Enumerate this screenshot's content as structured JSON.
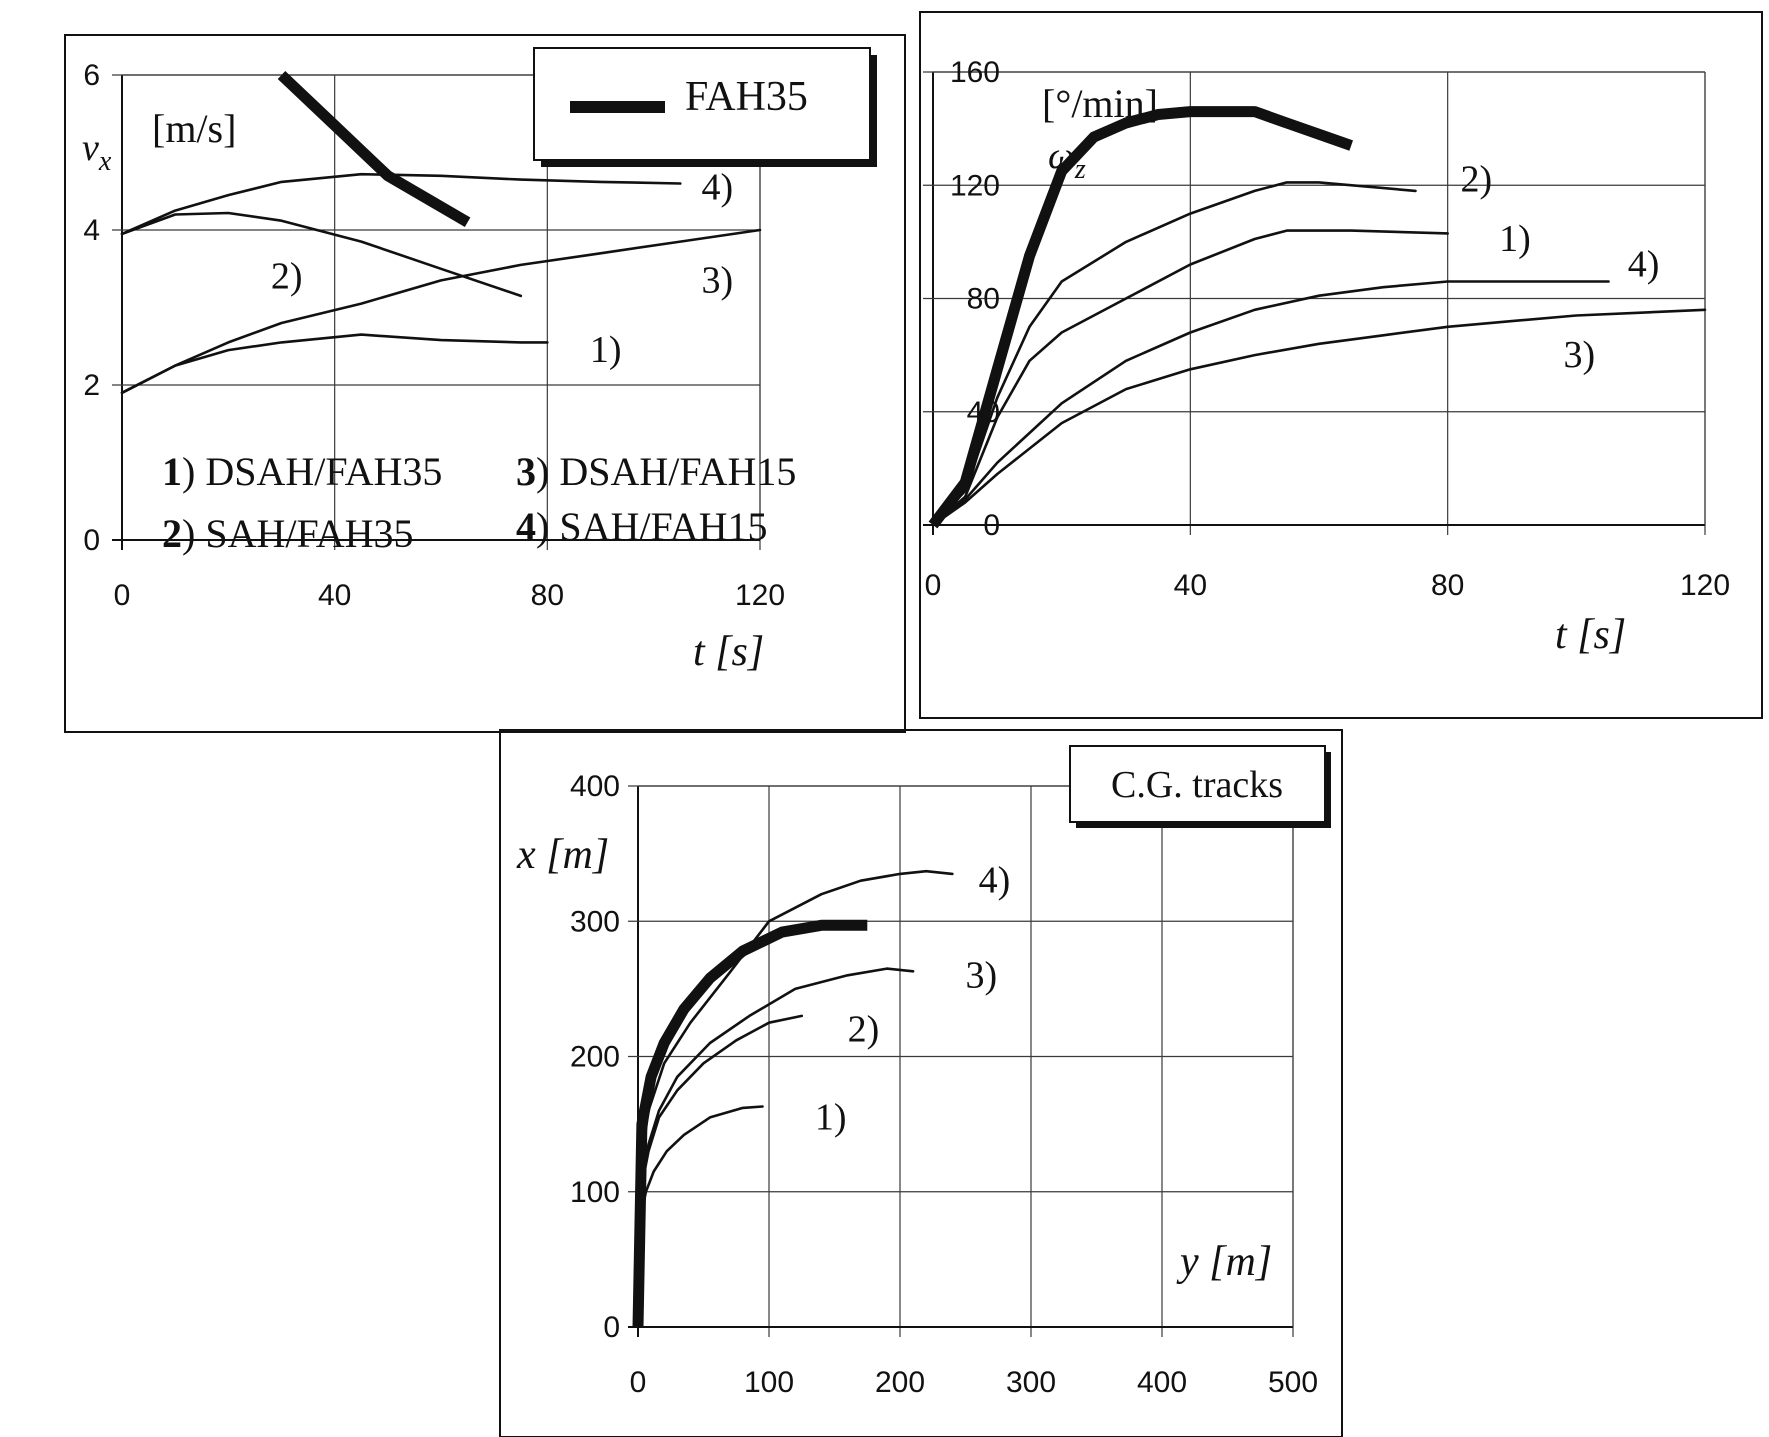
{
  "chart_data": [
    {
      "type": "line",
      "xlabel": "t [s]",
      "ylabel_symbol": "v",
      "ylabel_sub": "x",
      "yunit": "[m/s]",
      "xlim": [
        0,
        120
      ],
      "ylim": [
        0,
        6
      ],
      "xticks": [
        "0",
        "40",
        "80",
        "120"
      ],
      "yticks": [
        "0",
        "2",
        "4",
        "6"
      ],
      "legend": {
        "label": "FAH35",
        "entries": [
          {
            "num": "1",
            "text": ") DSAH/FAH35"
          },
          {
            "num": "2",
            "text": ") SAH/FAH35"
          },
          {
            "num": "3",
            "text": ") DSAH/FAH15"
          },
          {
            "num": "4",
            "text": ") SAH/FAH15"
          }
        ]
      },
      "series": [
        {
          "name": "FAH35",
          "thick": true,
          "x": [
            30,
            40,
            50,
            60,
            65
          ],
          "y": [
            6.1,
            5.35,
            4.7,
            4.3,
            4.1
          ]
        },
        {
          "name": "1)",
          "thick": false,
          "x": [
            0,
            10,
            20,
            30,
            45,
            60,
            75,
            80
          ],
          "y": [
            1.9,
            2.25,
            2.45,
            2.55,
            2.65,
            2.58,
            2.55,
            2.55
          ]
        },
        {
          "name": "2)",
          "thick": false,
          "x": [
            0,
            10,
            20,
            30,
            45,
            60,
            75
          ],
          "y": [
            3.95,
            4.2,
            4.22,
            4.12,
            3.85,
            3.5,
            3.15
          ]
        },
        {
          "name": "3)",
          "thick": false,
          "x": [
            0,
            10,
            20,
            30,
            45,
            60,
            75,
            90,
            105,
            120
          ],
          "y": [
            1.9,
            2.25,
            2.55,
            2.8,
            3.05,
            3.35,
            3.55,
            3.7,
            3.85,
            4.0
          ]
        },
        {
          "name": "4)",
          "thick": false,
          "x": [
            0,
            10,
            20,
            30,
            45,
            60,
            75,
            90,
            105
          ],
          "y": [
            3.95,
            4.25,
            4.45,
            4.62,
            4.72,
            4.7,
            4.65,
            4.62,
            4.6
          ]
        }
      ],
      "labels": [
        {
          "text": "1)",
          "x": 88,
          "y": 2.45
        },
        {
          "text": "2)",
          "x": 28,
          "y": 3.4
        },
        {
          "text": "3)",
          "x": 109,
          "y": 3.35
        },
        {
          "text": "4)",
          "x": 109,
          "y": 4.55
        }
      ]
    },
    {
      "type": "line",
      "xlabel": "t [s]",
      "ylabel_symbol": "ω",
      "ylabel_sub": "z",
      "yunit": "[°/min]",
      "xlim": [
        0,
        120
      ],
      "ylim": [
        0,
        160
      ],
      "xticks": [
        "0",
        "40",
        "80",
        "120"
      ],
      "yticks": [
        "0",
        "40",
        "80",
        "120",
        "160"
      ],
      "series": [
        {
          "name": "FAH35",
          "thick": true,
          "x": [
            0,
            5,
            10,
            15,
            20,
            25,
            30,
            35,
            40,
            50,
            55,
            65
          ],
          "y": [
            0,
            15,
            55,
            95,
            125,
            137,
            142,
            145,
            146,
            146,
            142,
            134
          ]
        },
        {
          "name": "1)",
          "thick": false,
          "x": [
            0,
            5,
            10,
            15,
            20,
            30,
            40,
            50,
            55,
            65,
            80
          ],
          "y": [
            0,
            10,
            38,
            58,
            68,
            80,
            92,
            101,
            104,
            104,
            103
          ]
        },
        {
          "name": "2)",
          "thick": false,
          "x": [
            0,
            5,
            10,
            15,
            20,
            30,
            40,
            50,
            55,
            60,
            75
          ],
          "y": [
            0,
            12,
            45,
            70,
            86,
            100,
            110,
            118,
            121,
            121,
            118
          ]
        },
        {
          "name": "3)",
          "thick": false,
          "x": [
            0,
            5,
            10,
            20,
            30,
            40,
            50,
            60,
            70,
            80,
            90,
            100,
            110,
            120
          ],
          "y": [
            0,
            8,
            18,
            36,
            48,
            55,
            60,
            64,
            67,
            70,
            72,
            74,
            75,
            76
          ]
        },
        {
          "name": "4)",
          "thick": false,
          "x": [
            0,
            5,
            10,
            20,
            30,
            40,
            50,
            60,
            70,
            80,
            90,
            105
          ],
          "y": [
            0,
            9,
            22,
            43,
            58,
            68,
            76,
            81,
            84,
            86,
            86,
            86
          ]
        }
      ],
      "labels": [
        {
          "text": "1)",
          "x": 88,
          "y": 101
        },
        {
          "text": "2)",
          "x": 82,
          "y": 122
        },
        {
          "text": "3)",
          "x": 98,
          "y": 60
        },
        {
          "text": "4)",
          "x": 108,
          "y": 92
        }
      ]
    },
    {
      "type": "line",
      "title": "C.G. tracks",
      "xlabel": "y [m]",
      "ylabel": "x [m]",
      "xlim": [
        0,
        500
      ],
      "ylim": [
        0,
        400
      ],
      "xticks": [
        "0",
        "100",
        "200",
        "300",
        "400",
        "500"
      ],
      "yticks": [
        "0",
        "100",
        "200",
        "300",
        "400"
      ],
      "series": [
        {
          "name": "FAH35",
          "thick": true,
          "x": [
            0,
            3,
            10,
            20,
            35,
            55,
            80,
            110,
            140,
            175
          ],
          "y": [
            0,
            150,
            185,
            210,
            235,
            258,
            278,
            292,
            297,
            297
          ]
        },
        {
          "name": "1)",
          "thick": false,
          "x": [
            0,
            2,
            6,
            12,
            22,
            35,
            55,
            80,
            95
          ],
          "y": [
            0,
            80,
            100,
            115,
            130,
            142,
            155,
            162,
            163
          ]
        },
        {
          "name": "2)",
          "thick": false,
          "x": [
            0,
            3,
            8,
            16,
            30,
            50,
            75,
            100,
            125
          ],
          "y": [
            0,
            105,
            130,
            155,
            175,
            195,
            212,
            225,
            230
          ]
        },
        {
          "name": "3)",
          "thick": false,
          "x": [
            0,
            3,
            8,
            16,
            30,
            55,
            85,
            120,
            160,
            190,
            210
          ],
          "y": [
            0,
            105,
            135,
            160,
            185,
            210,
            230,
            250,
            260,
            265,
            263
          ]
        },
        {
          "name": "4)",
          "thick": false,
          "x": [
            0,
            3,
            8,
            20,
            40,
            70,
            100,
            140,
            170,
            200,
            220,
            240
          ],
          "y": [
            0,
            125,
            160,
            195,
            225,
            262,
            300,
            320,
            330,
            335,
            337,
            335
          ]
        }
      ],
      "labels": [
        {
          "text": "1)",
          "x": 135,
          "y": 155
        },
        {
          "text": "2)",
          "x": 160,
          "y": 220
        },
        {
          "text": "3)",
          "x": 250,
          "y": 260
        },
        {
          "text": "4)",
          "x": 260,
          "y": 330
        }
      ]
    }
  ]
}
